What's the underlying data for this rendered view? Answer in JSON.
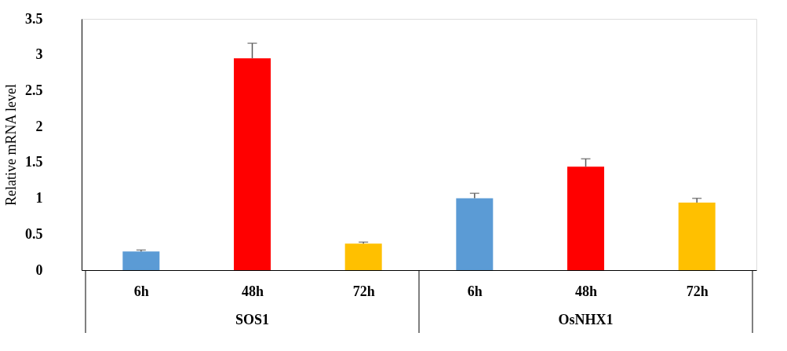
{
  "chart_data": {
    "type": "bar",
    "ylabel": "Relative mRNA level",
    "categories": [
      "6h",
      "48h",
      "72h",
      "6h",
      "48h",
      "72h"
    ],
    "values": [
      0.26,
      2.95,
      0.37,
      1.0,
      1.44,
      0.94
    ],
    "colors": [
      "#5b9bd5",
      "#ff0000",
      "#ffc000",
      "#5b9bd5",
      "#ff0000",
      "#ffc000"
    ],
    "errors": [
      [
        0.26,
        0.28
      ],
      [
        2.95,
        3.16
      ],
      [
        0.37,
        0.39
      ],
      [
        1.0,
        1.07
      ],
      [
        1.44,
        1.55
      ],
      [
        0.94,
        1.0
      ]
    ],
    "annotations": [
      "SOS1",
      "OsNHX1"
    ],
    "ylim": [
      0,
      3.5
    ],
    "yticks": [
      0,
      0.5,
      1,
      1.5,
      2,
      2.5,
      3,
      3.5
    ],
    "grid": false
  }
}
